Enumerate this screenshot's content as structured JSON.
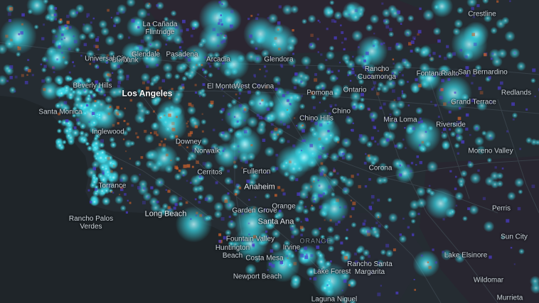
{
  "map": {
    "colors": {
      "ocean": "#1f2529",
      "land": "#262d33",
      "road": "#3a444c",
      "dot_cyan": "#39d7e6",
      "dot_blue": "#4b3cc8",
      "dot_orange": "#d2642a",
      "mountain_red": "#3a2226"
    },
    "labels": [
      {
        "name": "la-canada-flintridge-label",
        "text": "La Cañada Flintridge",
        "style": "multi"
      },
      {
        "name": "burbank-label",
        "text": "Burbank",
        "style": ""
      },
      {
        "name": "glendale-label",
        "text": "Glendale",
        "style": ""
      },
      {
        "name": "pasadena-label",
        "text": "Pasadena",
        "style": ""
      },
      {
        "name": "universal-city-label",
        "text": "Universal City",
        "style": ""
      },
      {
        "name": "arcadia-label",
        "text": "Arcadia",
        "style": ""
      },
      {
        "name": "glendora-label",
        "text": "Glendora",
        "style": ""
      },
      {
        "name": "crestline-label",
        "text": "Crestline",
        "style": ""
      },
      {
        "name": "rancho-cucamonga-label",
        "text": "Rancho Cucamonga",
        "style": "multi"
      },
      {
        "name": "fontana-label",
        "text": "Fontana",
        "style": ""
      },
      {
        "name": "rialto-label",
        "text": "Rialto",
        "style": ""
      },
      {
        "name": "san-bernardino-label",
        "text": "San Bernardino",
        "style": ""
      },
      {
        "name": "redlands-label",
        "text": "Redlands",
        "style": ""
      },
      {
        "name": "beverly-hills-label",
        "text": "Beverly Hills",
        "style": ""
      },
      {
        "name": "los-angeles-label",
        "text": "Los Angeles",
        "style": "major"
      },
      {
        "name": "el-monte-label",
        "text": "El Monte",
        "style": ""
      },
      {
        "name": "west-covina-label",
        "text": "West Covina",
        "style": ""
      },
      {
        "name": "pomona-label",
        "text": "Pomona",
        "style": ""
      },
      {
        "name": "ontario-label",
        "text": "Ontario",
        "style": ""
      },
      {
        "name": "grand-terrace-label",
        "text": "Grand Terrace",
        "style": ""
      },
      {
        "name": "santa-monica-label",
        "text": "Santa Monica",
        "style": ""
      },
      {
        "name": "chino-hills-label",
        "text": "Chino Hills",
        "style": ""
      },
      {
        "name": "chino-label",
        "text": "Chino",
        "style": ""
      },
      {
        "name": "mira-loma-label",
        "text": "Mira Loma",
        "style": ""
      },
      {
        "name": "riverside-label",
        "text": "Riverside",
        "style": ""
      },
      {
        "name": "inglewood-label",
        "text": "Inglewood",
        "style": ""
      },
      {
        "name": "downey-label",
        "text": "Downey",
        "style": ""
      },
      {
        "name": "norwalk-label",
        "text": "Norwalk",
        "style": ""
      },
      {
        "name": "moreno-valley-label",
        "text": "Moreno Valley",
        "style": ""
      },
      {
        "name": "cerritos-label",
        "text": "Cerritos",
        "style": ""
      },
      {
        "name": "fullerton-label",
        "text": "Fullerton",
        "style": ""
      },
      {
        "name": "corona-label",
        "text": "Corona",
        "style": ""
      },
      {
        "name": "torrance-label",
        "text": "Torrance",
        "style": ""
      },
      {
        "name": "anaheim-label",
        "text": "Anaheim",
        "style": "mid"
      },
      {
        "name": "perris-label",
        "text": "Perris",
        "style": ""
      },
      {
        "name": "long-beach-label",
        "text": "Long Beach",
        "style": "mid"
      },
      {
        "name": "orange-city-label",
        "text": "Orange",
        "style": ""
      },
      {
        "name": "garden-grove-label",
        "text": "Garden Grove",
        "style": ""
      },
      {
        "name": "rancho-palos-verdes-label",
        "text": "Rancho Palos Verdes",
        "style": "multi"
      },
      {
        "name": "santa-ana-label",
        "text": "Santa Ana",
        "style": "mid"
      },
      {
        "name": "fountain-valley-label",
        "text": "Fountain Valley",
        "style": ""
      },
      {
        "name": "orange-county-label",
        "text": "ORANGE",
        "style": "faint"
      },
      {
        "name": "sun-city-label",
        "text": "Sun City",
        "style": ""
      },
      {
        "name": "huntington-beach-label",
        "text": "Huntington Beach",
        "style": "multi"
      },
      {
        "name": "irvine-label",
        "text": "Irvine",
        "style": ""
      },
      {
        "name": "costa-mesa-label",
        "text": "Costa Mesa",
        "style": ""
      },
      {
        "name": "rancho-santa-margarita-label",
        "text": "Rancho Santa Margarita",
        "style": "multi"
      },
      {
        "name": "lake-elsinore-label",
        "text": "Lake Elsinore",
        "style": ""
      },
      {
        "name": "lake-forest-label",
        "text": "Lake Forest",
        "style": ""
      },
      {
        "name": "newport-beach-label",
        "text": "Newport Beach",
        "style": ""
      },
      {
        "name": "wildomar-label",
        "text": "Wildomar",
        "style": ""
      },
      {
        "name": "laguna-niguel-label",
        "text": "Laguna Niguel",
        "style": ""
      },
      {
        "name": "murrieta-label",
        "text": "Murrieta",
        "style": ""
      }
    ]
  }
}
